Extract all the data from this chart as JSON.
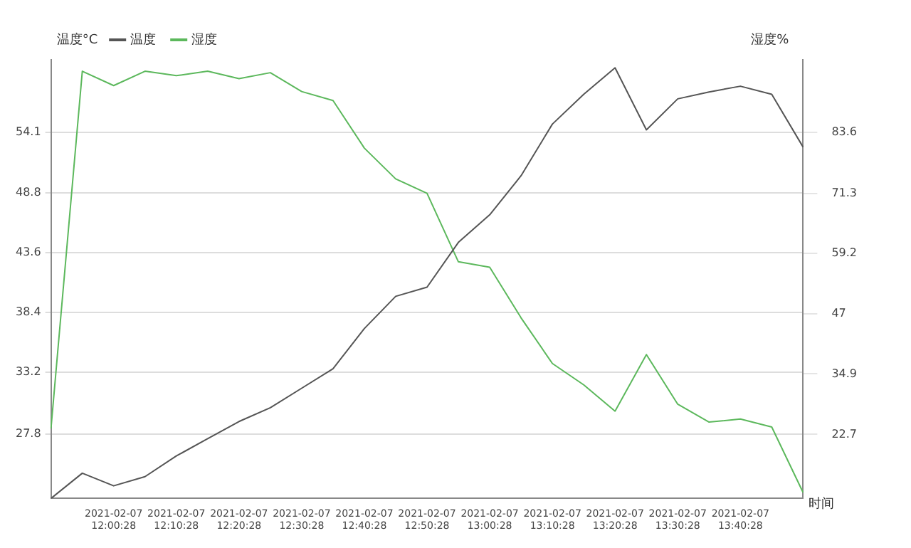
{
  "chart_data": {
    "type": "line",
    "ylabel": "温度°C",
    "y2label": "湿度%",
    "xlabel": "时间",
    "categories": [
      null,
      null,
      "2021-02-07 12:00:28",
      null,
      "2021-02-07 12:10:28",
      null,
      "2021-02-07 12:20:28",
      null,
      "2021-02-07 12:30:28",
      null,
      "2021-02-07 12:40:28",
      null,
      "2021-02-07 12:50:28",
      null,
      "2021-02-07 13:00:28",
      null,
      "2021-02-07 13:10:28",
      null,
      "2021-02-07 13:20:28",
      null,
      "2021-02-07 13:30:28",
      null,
      "2021-02-07 13:40:28",
      null,
      null
    ],
    "series": [
      {
        "name": "温度",
        "color": "#555555",
        "values": [
          22.2,
          24.4,
          23.3,
          24.1,
          25.9,
          27.4,
          28.9,
          30.1,
          31.8,
          33.5,
          37.0,
          39.8,
          40.6,
          44.5,
          46.9,
          50.3,
          54.8,
          57.4,
          59.7,
          54.3,
          57.0,
          57.6,
          58.1,
          57.4,
          52.8
        ]
      },
      {
        "name": "湿度",
        "color": "#5cb85c",
        "axis": "y2",
        "values": [
          23.9,
          95.9,
          93.0,
          95.9,
          95.0,
          95.9,
          94.4,
          95.6,
          91.8,
          90.0,
          80.4,
          74.2,
          71.3,
          57.5,
          56.4,
          46.2,
          37.0,
          32.7,
          27.4,
          38.8,
          28.8,
          25.2,
          25.8,
          24.2,
          11.0
        ]
      }
    ],
    "ylim": [
      22.2,
      60.4
    ],
    "yticks": [
      27.8,
      33.2,
      38.4,
      43.6,
      48.8,
      54.1
    ],
    "y2lim": [
      9.8,
      98.2
    ],
    "y2ticks": [
      22.7,
      34.9,
      47.0,
      59.2,
      71.3,
      83.6
    ],
    "grid": "y",
    "legend": "top left",
    "marker": "none",
    "line_style": "solid"
  }
}
